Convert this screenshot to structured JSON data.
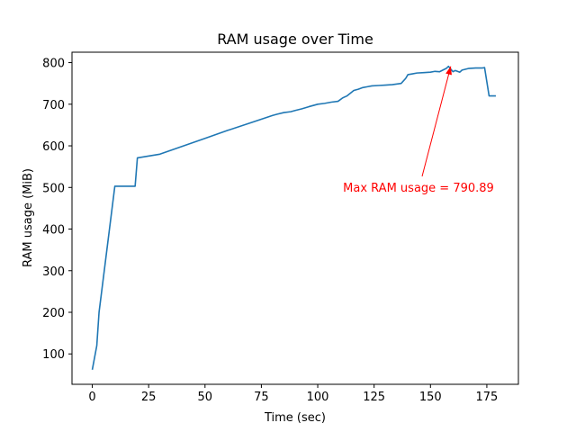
{
  "chart_data": {
    "type": "line",
    "title": "RAM usage over Time",
    "xlabel": "Time (sec)",
    "ylabel": "RAM usage (MiB)",
    "xlim": [
      -9,
      189
    ],
    "ylim": [
      27,
      825
    ],
    "xticks": [
      0,
      25,
      50,
      75,
      100,
      125,
      150,
      175
    ],
    "yticks": [
      100,
      200,
      300,
      400,
      500,
      600,
      700,
      800
    ],
    "grid": false,
    "line_color": "#1f77b4",
    "series": [
      {
        "x": [
          0,
          2,
          3,
          10,
          19,
          20,
          30,
          40,
          50,
          60,
          70,
          80,
          82,
          85,
          88,
          90,
          93,
          96,
          100,
          103,
          106,
          109,
          111,
          113,
          116,
          118,
          120,
          122,
          124,
          127,
          130,
          133,
          137,
          139,
          140,
          142,
          144,
          147,
          150,
          152,
          154,
          157,
          158,
          160,
          161,
          163,
          164,
          167,
          170,
          173,
          174,
          176,
          179
        ],
        "y": [
          62,
          120,
          200,
          503,
          503,
          571,
          580,
          599,
          618,
          637,
          655,
          673,
          676,
          680,
          682,
          685,
          689,
          694,
          700,
          702,
          705,
          707,
          715,
          720,
          733,
          736,
          740,
          742,
          744,
          745,
          746,
          747,
          750,
          762,
          771,
          773,
          775,
          776,
          777,
          779,
          778,
          786,
          791,
          778,
          781,
          777,
          782,
          786,
          787,
          787,
          788,
          720,
          720
        ]
      }
    ],
    "annotation": {
      "text": "Max RAM usage = 790.89",
      "color": "#ff0000",
      "point": [
        159,
        790.89
      ],
      "text_at": [
        130,
        494
      ]
    }
  }
}
